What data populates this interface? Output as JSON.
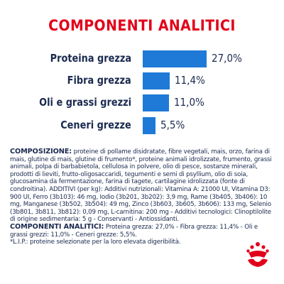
{
  "title": "COMPONENTI ANALITICI",
  "nutrients": [
    {
      "label": "Proteina grezza",
      "value": "27,0%",
      "percent": 27.0
    },
    {
      "label": "Fibra grezza",
      "value": "11,4%",
      "percent": 11.4
    },
    {
      "label": "Oli e grassi grezzi",
      "value": "11,0%",
      "percent": 11.0
    },
    {
      "label": "Ceneri grezze",
      "value": "5,5%",
      "percent": 5.5
    }
  ],
  "composition": {
    "heading": "COMPOSIZIONE:",
    "text": " proteine di pollame disidratate, fibre vegetali, mais, orzo, farina di mais, glutine di mais, glutine di frumento*, proteine animali idrolizzate, frumento, grassi animali, polpa di barbabietola, cellulosa in polvere, olio di pesce, sostanze minerali, prodotti di lieviti, frutto-oligosaccaridi, tegumenti e semi di psyllium, olio di soia, glucosamina da fermentazione, farina di tagete, cartilagine idrolizzata (fonte di condroitina). ADDITIVI (per kg): Additivi nutrizionali: Vitamina A: 21000 UI, Vitamina D3: 900 UI, Ferro (3b103): 46 mg, Iodio (3b201, 3b202): 3,9 mg, Rame (3b405, 3b406): 10 mg, Manganese (3b502, 3b504): 49 mg, Zinco (3b603, 3b605, 3b606): 133 mg, Selenio (3b801, 3b811, 3b812): 0,09 mg, L-carnitina: 200 mg - Additivi tecnologici: Clinoptilolite di origine sedimentaria: 5 g - Conservanti - Antiossidanti."
  },
  "analytical": {
    "heading": "COMPONENTI ANALITICI:",
    "text": " Proteina grezza: 27,0% - Fibra grezza: 11,4% - Oli e grassi grezzi: 11,0% - Ceneri grezze: 5,5%."
  },
  "footnote": "*L.I.P.: proteine selezionate per la loro elevata digeribilità.",
  "logo": {
    "icon": "royal-canin-crown-logo",
    "color": "#e2001a"
  },
  "colors": {
    "accent": "#e2001a",
    "bar": "#1e7ad6",
    "text": "#1a2a4f"
  }
}
